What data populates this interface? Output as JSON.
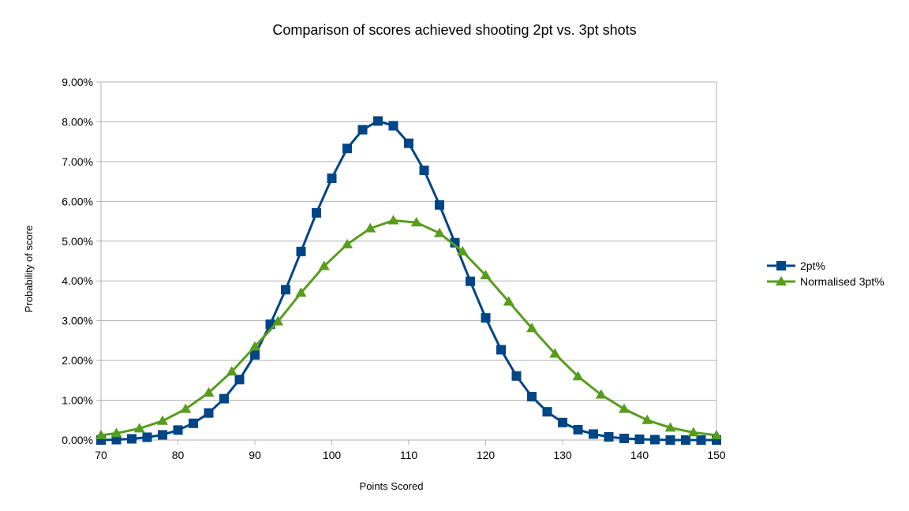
{
  "chart_data": {
    "type": "line",
    "title": "Comparison of scores achieved shooting 2pt vs. 3pt shots",
    "xlabel": "Points Scored",
    "ylabel": "Probability of score",
    "xlim": [
      70,
      150
    ],
    "ylim": [
      0,
      9
    ],
    "x_ticks": [
      "70",
      "80",
      "90",
      "100",
      "110",
      "120",
      "130",
      "140",
      "150"
    ],
    "y_ticks": [
      "0.00%",
      "1.00%",
      "2.00%",
      "3.00%",
      "4.00%",
      "5.00%",
      "6.00%",
      "7.00%",
      "8.00%",
      "9.00%"
    ],
    "grid": true,
    "legend_position": "right",
    "series": [
      {
        "name": "2pt%",
        "color": "#004586",
        "marker": "square",
        "x": [
          70,
          72,
          74,
          76,
          78,
          80,
          82,
          84,
          86,
          88,
          90,
          92,
          94,
          96,
          98,
          100,
          102,
          104,
          106,
          108,
          110,
          112,
          114,
          116,
          118,
          120,
          122,
          124,
          126,
          128,
          130,
          132,
          134,
          136,
          138,
          140,
          142,
          144,
          146,
          148,
          150
        ],
        "values": [
          0.0,
          0.01,
          0.03,
          0.07,
          0.13,
          0.25,
          0.42,
          0.68,
          1.04,
          1.52,
          2.14,
          2.91,
          3.78,
          4.74,
          5.71,
          6.58,
          7.33,
          7.8,
          8.02,
          7.9,
          7.46,
          6.78,
          5.91,
          4.96,
          3.99,
          3.07,
          2.27,
          1.61,
          1.09,
          0.71,
          0.44,
          0.26,
          0.15,
          0.08,
          0.04,
          0.02,
          0.01,
          0.0,
          0.0,
          0.0,
          0.0
        ]
      },
      {
        "name": "Normalised 3pt%",
        "color": "#579d1c",
        "marker": "triangle",
        "x": [
          70,
          72,
          75,
          78,
          81,
          84,
          87,
          90,
          93,
          96,
          99,
          102,
          105,
          108,
          111,
          114,
          117,
          120,
          123,
          126,
          129,
          132,
          135,
          138,
          141,
          144,
          147,
          150
        ],
        "values": [
          0.12,
          0.17,
          0.29,
          0.48,
          0.78,
          1.19,
          1.72,
          2.35,
          2.98,
          3.7,
          4.37,
          4.92,
          5.32,
          5.52,
          5.47,
          5.2,
          4.74,
          4.14,
          3.48,
          2.81,
          2.17,
          1.6,
          1.14,
          0.78,
          0.5,
          0.31,
          0.19,
          0.12
        ]
      }
    ]
  }
}
